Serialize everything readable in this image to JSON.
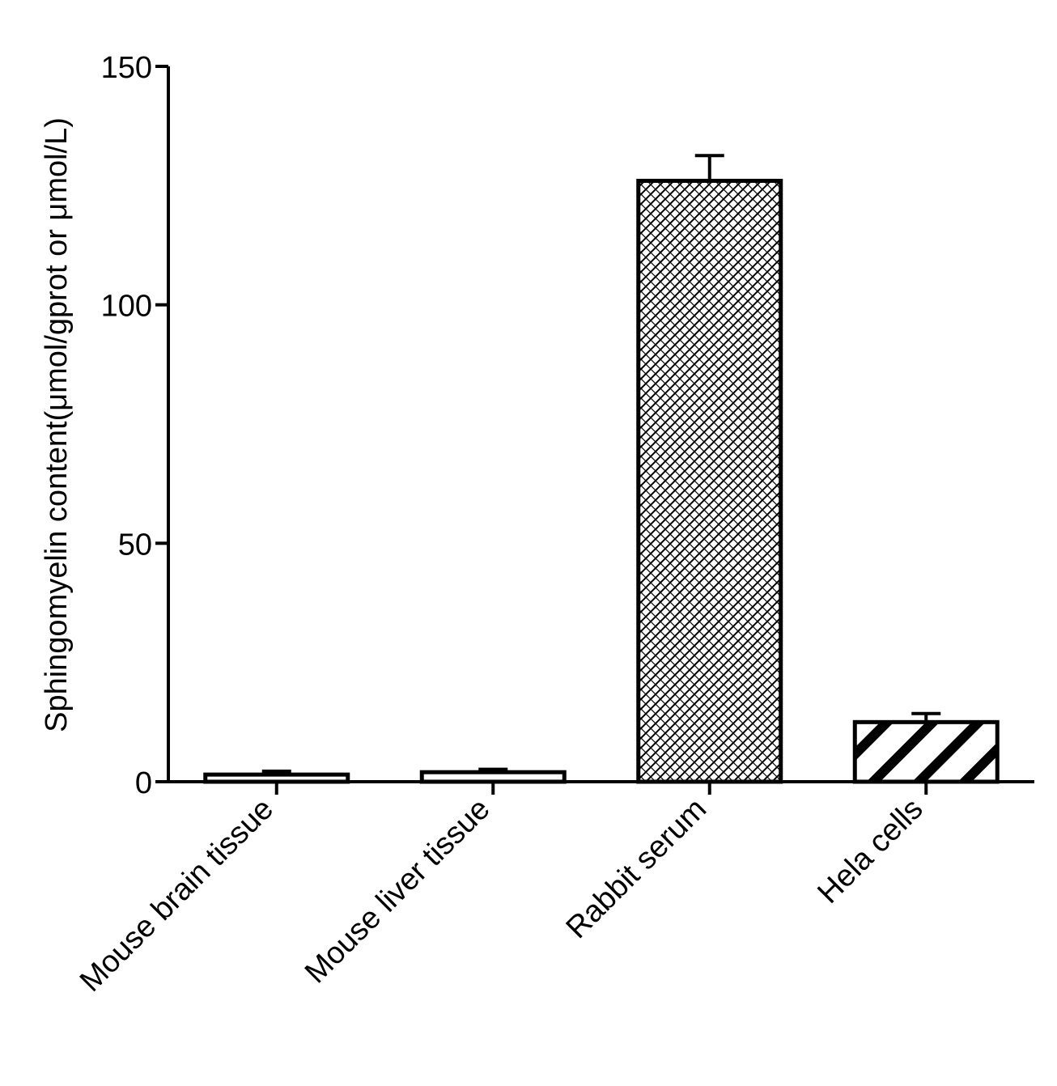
{
  "chart_data": {
    "type": "bar",
    "title": "",
    "xlabel": "",
    "ylabel": "Sphingomyelin content(μmol/gprot or μmol/L)",
    "ylim": [
      0,
      150
    ],
    "yticks": [
      0,
      50,
      100,
      150
    ],
    "categories": [
      "Mouse brain tissue",
      "Mouse liver tissue",
      "Rabbit serum",
      "Hela cells"
    ],
    "values": [
      1.5,
      2.0,
      126,
      12.5
    ],
    "errors": [
      0.7,
      0.6,
      5.3,
      1.8
    ],
    "fill_patterns": [
      "none",
      "none",
      "crosshatch",
      "diagonal-stripes"
    ],
    "grid": false,
    "legend": "none"
  }
}
